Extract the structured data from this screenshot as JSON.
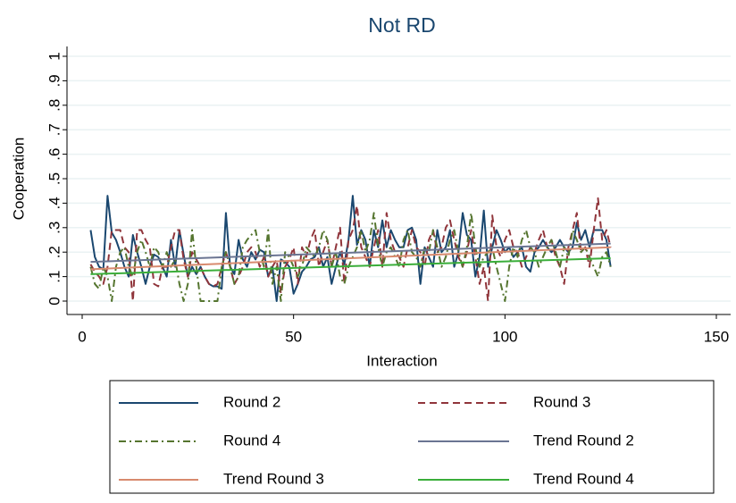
{
  "chart_data": {
    "type": "line",
    "title": "Not RD",
    "x_label": "Interaction",
    "y_label": "Cooperation",
    "x": [
      2,
      3,
      4,
      5,
      6,
      7,
      8,
      9,
      10,
      11,
      12,
      13,
      14,
      15,
      16,
      17,
      18,
      19,
      20,
      21,
      22,
      23,
      24,
      25,
      26,
      27,
      28,
      29,
      30,
      31,
      32,
      33,
      34,
      35,
      36,
      37,
      38,
      39,
      40,
      41,
      42,
      43,
      44,
      45,
      46,
      47,
      48,
      49,
      50,
      51,
      52,
      53,
      54,
      55,
      56,
      57,
      58,
      59,
      60,
      61,
      62,
      63,
      64,
      65,
      66,
      67,
      68,
      69,
      70,
      71,
      72,
      73,
      74,
      75,
      76,
      77,
      78,
      79,
      80,
      81,
      82,
      83,
      84,
      85,
      86,
      87,
      88,
      89,
      90,
      91,
      92,
      93,
      94,
      95,
      96,
      97,
      98,
      99,
      100,
      101,
      102,
      103,
      104,
      105,
      106,
      107,
      108,
      109,
      110,
      111,
      112,
      113,
      114,
      115,
      116,
      117,
      118,
      119,
      120,
      121,
      122,
      123,
      124,
      125
    ],
    "series": [
      {
        "name": "Round 2",
        "color": "#1a476f",
        "dash": "none",
        "values": [
          0.29,
          0.18,
          0.14,
          0.13,
          0.43,
          0.28,
          0.25,
          0.2,
          0.14,
          0.1,
          0.27,
          0.2,
          0.14,
          0.07,
          0.14,
          0.19,
          0.18,
          0.14,
          0.1,
          0.25,
          0.14,
          0.29,
          0.19,
          0.1,
          0.14,
          0.11,
          0.14,
          0.1,
          0.07,
          0.06,
          0.06,
          0.05,
          0.36,
          0.14,
          0.11,
          0.25,
          0.17,
          0.14,
          0.2,
          0.17,
          0.21,
          0.2,
          0.1,
          0.14,
          0,
          0.17,
          0.16,
          0.14,
          0.03,
          0.07,
          0.12,
          0.14,
          0.17,
          0.18,
          0.22,
          0.14,
          0.18,
          0.07,
          0.14,
          0.2,
          0.15,
          0.25,
          0.43,
          0.23,
          0.29,
          0.25,
          0.14,
          0.29,
          0.22,
          0.33,
          0.22,
          0.29,
          0.25,
          0.22,
          0.22,
          0.29,
          0.3,
          0.25,
          0.07,
          0.22,
          0.18,
          0.14,
          0.29,
          0.2,
          0.22,
          0.29,
          0.14,
          0.2,
          0.36,
          0.27,
          0.25,
          0.1,
          0.18,
          0.37,
          0.14,
          0.22,
          0.29,
          0.25,
          0.2,
          0.22,
          0.18,
          0.2,
          0.22,
          0.14,
          0.12,
          0.2,
          0.22,
          0.25,
          0.22,
          0.2,
          0.22,
          0.25,
          0.22,
          0.2,
          0.22,
          0.32,
          0.25,
          0.29,
          0.22,
          0.29,
          0.29,
          0.29,
          0.25,
          0.14
        ]
      },
      {
        "name": "Round 3",
        "color": "#90353b",
        "dash": "8,5",
        "values": [
          0.15,
          0.12,
          0.1,
          0.07,
          0.14,
          0.29,
          0.29,
          0.29,
          0.22,
          0.2,
          0,
          0.29,
          0.29,
          0.25,
          0.22,
          0.07,
          0.06,
          0.14,
          0.14,
          0.22,
          0.29,
          0.29,
          0.17,
          0.1,
          0.2,
          0.17,
          0.14,
          0.1,
          0.07,
          0.06,
          0.07,
          0.14,
          0.2,
          0.14,
          0.07,
          0.1,
          0.14,
          0.2,
          0.22,
          0.2,
          0.14,
          0.18,
          0.1,
          0.14,
          0.17,
          0.03,
          0.14,
          0.17,
          0.22,
          0.07,
          0.22,
          0.18,
          0.25,
          0.29,
          0.14,
          0.2,
          0.25,
          0.14,
          0.22,
          0.3,
          0.07,
          0.25,
          0.29,
          0.39,
          0.22,
          0.18,
          0.14,
          0.22,
          0.29,
          0.14,
          0.36,
          0.25,
          0.2,
          0.18,
          0.14,
          0.22,
          0.29,
          0.22,
          0.2,
          0.14,
          0.25,
          0.29,
          0.2,
          0.22,
          0.3,
          0.33,
          0.25,
          0.18,
          0.14,
          0.2,
          0.29,
          0.18,
          0.07,
          0.14,
          0,
          0.35,
          0.22,
          0.18,
          0.25,
          0.29,
          0.22,
          0.2,
          0.14,
          0.18,
          0.22,
          0.2,
          0.25,
          0.29,
          0.22,
          0.25,
          0.18,
          0.14,
          0.07,
          0.22,
          0.29,
          0.36,
          0.2,
          0.22,
          0.14,
          0.29,
          0.42,
          0.25,
          0.29,
          0.22
        ]
      },
      {
        "name": "Round 4",
        "color": "#55752f",
        "dash": "8,4,2,4",
        "values": [
          0.14,
          0.07,
          0.05,
          0.14,
          0.1,
          0,
          0.14,
          0.2,
          0.22,
          0.14,
          0.1,
          0.2,
          0.25,
          0.2,
          0.14,
          0.22,
          0.2,
          0.14,
          0.2,
          0.14,
          0.17,
          0.07,
          0,
          0.07,
          0.29,
          0.14,
          0,
          0,
          0,
          0,
          0,
          0.14,
          0.2,
          0.14,
          0.07,
          0.1,
          0.22,
          0.25,
          0.27,
          0.29,
          0.2,
          0.14,
          0.29,
          0.07,
          0.14,
          0,
          0.2,
          0.18,
          0.14,
          0.1,
          0.14,
          0.22,
          0.2,
          0.18,
          0.22,
          0.29,
          0.25,
          0.14,
          0.2,
          0.1,
          0.07,
          0.14,
          0.18,
          0.22,
          0.29,
          0.2,
          0.25,
          0.36,
          0.22,
          0.14,
          0.2,
          0.22,
          0.18,
          0.14,
          0.25,
          0.29,
          0.2,
          0.18,
          0.14,
          0.22,
          0.2,
          0.29,
          0.22,
          0.14,
          0.18,
          0.25,
          0.29,
          0.2,
          0.14,
          0.22,
          0.36,
          0.22,
          0.14,
          0.18,
          0.2,
          0.22,
          0.14,
          0.07,
          0,
          0.14,
          0.22,
          0.18,
          0.25,
          0.29,
          0.22,
          0.2,
          0.14,
          0.18,
          0.22,
          0.25,
          0.2,
          0.14,
          0.22,
          0.18,
          0.29,
          0.25,
          0.2,
          0.22,
          0.18,
          0.14,
          0.1,
          0.18,
          0.2,
          0.14
        ]
      },
      {
        "name": "Trend Round 2",
        "color": "#6a7592",
        "dash": "none",
        "x": [
          2,
          125
        ],
        "values": [
          0.16,
          0.235
        ]
      },
      {
        "name": "Trend Round 3",
        "color": "#d88a6e",
        "dash": "none",
        "x": [
          2,
          125
        ],
        "values": [
          0.13,
          0.22
        ]
      },
      {
        "name": "Trend Round 4",
        "color": "#3aae3a",
        "dash": "none",
        "x": [
          2,
          125
        ],
        "values": [
          0.11,
          0.175
        ]
      }
    ],
    "xlim": [
      0,
      150
    ],
    "xticks": [
      0,
      50,
      100,
      150
    ],
    "ylim": [
      0,
      1
    ],
    "yticks": [
      0,
      {
        "value": 0.1,
        "label": ".1"
      },
      {
        "value": 0.2,
        "label": ".2"
      },
      {
        "value": 0.3,
        "label": ".3"
      },
      {
        "value": 0.4,
        "label": ".4"
      },
      {
        "value": 0.5,
        "label": ".5"
      },
      {
        "value": 0.6,
        "label": ".6"
      },
      {
        "value": 0.7,
        "label": ".7"
      },
      {
        "value": 0.8,
        "label": ".8"
      },
      {
        "value": 0.9,
        "label": ".9"
      },
      1
    ],
    "grid": true
  }
}
